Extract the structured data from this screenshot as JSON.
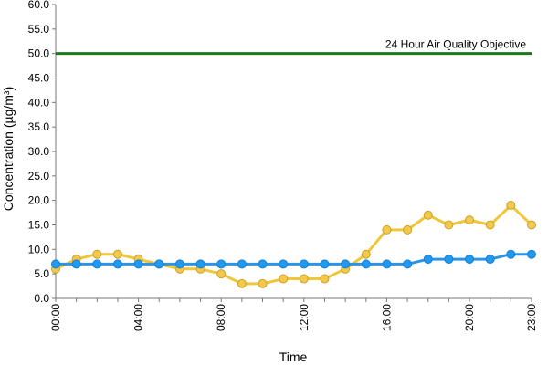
{
  "chart_data": {
    "type": "line",
    "title": "",
    "xlabel": "Time",
    "ylabel": "Concentration (µg/m³)",
    "ylim": [
      0,
      60
    ],
    "y_ticks": [
      "0.0",
      "5.0",
      "10.0",
      "15.0",
      "20.0",
      "25.0",
      "30.0",
      "35.0",
      "40.0",
      "45.0",
      "50.0",
      "55.0",
      "60.0"
    ],
    "x_tick_labels": [
      "00:00",
      "04:00",
      "08:00",
      "12:00",
      "16:00",
      "20:00",
      "23:00"
    ],
    "x_tick_hours": [
      0,
      4,
      8,
      12,
      16,
      20,
      23
    ],
    "x": [
      0,
      1,
      2,
      3,
      4,
      5,
      6,
      7,
      8,
      9,
      10,
      11,
      12,
      13,
      14,
      15,
      16,
      17,
      18,
      19,
      20,
      21,
      22,
      23
    ],
    "grid": false,
    "legend": "none",
    "series": [
      {
        "color": "#f0c63a",
        "marker_fill": "#f2c94c",
        "marker_stroke": "#c9a227",
        "values": [
          6,
          8,
          9,
          9,
          8,
          7,
          6,
          6,
          5,
          3,
          3,
          4,
          4,
          4,
          6,
          9,
          14,
          14,
          17,
          15,
          16,
          15,
          19,
          15
        ]
      },
      {
        "color": "#2b93e8",
        "marker_fill": "#1e9af0",
        "marker_stroke": "#1e7ecf",
        "values": [
          7,
          7,
          7,
          7,
          7,
          7,
          7,
          7,
          7,
          7,
          7,
          7,
          7,
          7,
          7,
          7,
          7,
          7,
          8,
          8,
          8,
          8,
          9,
          9
        ]
      }
    ],
    "reference_line": {
      "value": 50,
      "label": "24 Hour Air Quality Objective",
      "color": "#1a7a1a"
    }
  }
}
